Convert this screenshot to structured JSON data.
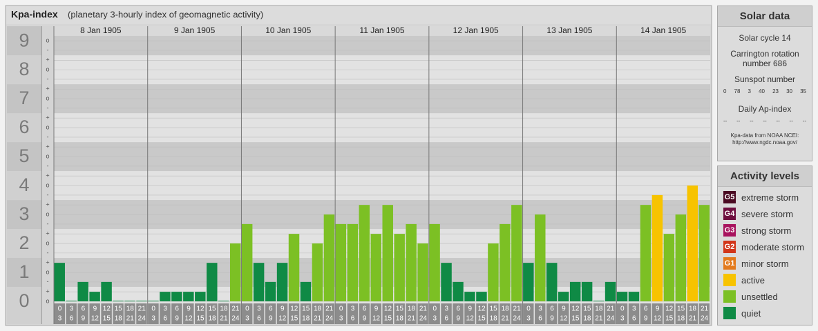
{
  "chart_data": {
    "type": "bar",
    "title": "Kpa-index",
    "subtitle": "(planetary 3-hourly index of geomagnetic activity)",
    "days": [
      "8 Jan 1905",
      "9 Jan 1905",
      "10 Jan 1905",
      "11 Jan 1905",
      "12 Jan 1905",
      "13 Jan 1905",
      "14 Jan 1905"
    ],
    "hour_starts": [
      0,
      3,
      6,
      9,
      12,
      15,
      18,
      21
    ],
    "hour_ends": [
      3,
      6,
      9,
      12,
      15,
      18,
      21,
      24
    ],
    "values": [
      1.33,
      0,
      0.67,
      0.33,
      0.67,
      0,
      0,
      0,
      0,
      0.33,
      0.33,
      0.33,
      0.33,
      1.33,
      0,
      2,
      2.67,
      1.33,
      0.67,
      1.33,
      2.33,
      0.67,
      2,
      3,
      2.67,
      2.67,
      3.33,
      2.33,
      3.33,
      2.33,
      2.67,
      2,
      2.67,
      1.33,
      0.67,
      0.33,
      0.33,
      2,
      2.67,
      3.33,
      1.33,
      3,
      1.33,
      0.33,
      0.67,
      0.67,
      0,
      0.67,
      0.33,
      0.33,
      3.33,
      3.67,
      2.33,
      3,
      4,
      3.33
    ],
    "colors": [
      "#0f8a45",
      "#0f8a45",
      "#0f8a45",
      "#0f8a45",
      "#0f8a45",
      "#0f8a45",
      "#0f8a45",
      "#0f8a45",
      "#0f8a45",
      "#0f8a45",
      "#0f8a45",
      "#0f8a45",
      "#0f8a45",
      "#0f8a45",
      "#0f8a45",
      "#7cc024",
      "#7cc024",
      "#0f8a45",
      "#0f8a45",
      "#0f8a45",
      "#7cc024",
      "#0f8a45",
      "#7cc024",
      "#7cc024",
      "#7cc024",
      "#7cc024",
      "#7cc024",
      "#7cc024",
      "#7cc024",
      "#7cc024",
      "#7cc024",
      "#7cc024",
      "#7cc024",
      "#0f8a45",
      "#0f8a45",
      "#0f8a45",
      "#0f8a45",
      "#7cc024",
      "#7cc024",
      "#7cc024",
      "#0f8a45",
      "#7cc024",
      "#0f8a45",
      "#0f8a45",
      "#0f8a45",
      "#0f8a45",
      "#0f8a45",
      "#0f8a45",
      "#0f8a45",
      "#0f8a45",
      "#7cc024",
      "#f7c300",
      "#7cc024",
      "#7cc024",
      "#f7c300",
      "#7cc024"
    ],
    "ylim": [
      0,
      9.17
    ],
    "yticks": [
      0,
      1,
      2,
      3,
      4,
      5,
      6,
      7,
      8,
      9
    ],
    "minor_ticks": [
      {
        "value": 0,
        "label": "o"
      },
      {
        "value": 0.33,
        "label": "+"
      },
      {
        "value": 0.67,
        "label": "-"
      },
      {
        "value": 1,
        "label": "o"
      },
      {
        "value": 1.33,
        "label": "+"
      },
      {
        "value": 1.67,
        "label": "-"
      },
      {
        "value": 2,
        "label": "o"
      },
      {
        "value": 2.33,
        "label": "+"
      },
      {
        "value": 2.67,
        "label": "-"
      },
      {
        "value": 3,
        "label": "o"
      },
      {
        "value": 3.33,
        "label": "+"
      },
      {
        "value": 3.67,
        "label": "-"
      },
      {
        "value": 4,
        "label": "o"
      },
      {
        "value": 4.33,
        "label": "+"
      },
      {
        "value": 4.67,
        "label": "-"
      },
      {
        "value": 5,
        "label": "o"
      },
      {
        "value": 5.33,
        "label": "+"
      },
      {
        "value": 5.67,
        "label": "-"
      },
      {
        "value": 6,
        "label": "o"
      },
      {
        "value": 6.33,
        "label": "+"
      },
      {
        "value": 6.67,
        "label": "-"
      },
      {
        "value": 7,
        "label": "o"
      },
      {
        "value": 7.33,
        "label": "+"
      },
      {
        "value": 7.67,
        "label": "-"
      },
      {
        "value": 8,
        "label": "o"
      },
      {
        "value": 8.33,
        "label": "+"
      },
      {
        "value": 8.67,
        "label": "-"
      },
      {
        "value": 9,
        "label": "o"
      }
    ],
    "grid": true
  },
  "solar_data": {
    "title": "Solar data",
    "solar_cycle": "Solar cycle 14",
    "carrington": "Carrington rotation number 686",
    "sunspot_title": "Sunspot number",
    "sunspot_numbers": [
      0,
      78,
      3,
      40,
      23,
      30,
      35
    ],
    "ap_title": "Daily Ap-index",
    "ap_values": [
      "--",
      "--",
      "--",
      "--",
      "--",
      "--",
      "--"
    ],
    "source": "Kpa-data from NOAA NCEI:",
    "source_url": "http://www.ngdc.noaa.gov/"
  },
  "activity_levels": {
    "title": "Activity levels",
    "items": [
      {
        "badge": "G5",
        "label": "extreme storm",
        "color": "#4a0a22"
      },
      {
        "badge": "G4",
        "label": "severe storm",
        "color": "#6e0e3e"
      },
      {
        "badge": "G3",
        "label": "strong storm",
        "color": "#a8125e"
      },
      {
        "badge": "G2",
        "label": "moderate storm",
        "color": "#d2361a"
      },
      {
        "badge": "G1",
        "label": "minor storm",
        "color": "#e37a1c"
      },
      {
        "label": "active",
        "color": "#f7c300"
      },
      {
        "label": "unsettled",
        "color": "#7cc024"
      },
      {
        "label": "quiet",
        "color": "#0f8a45"
      }
    ]
  }
}
